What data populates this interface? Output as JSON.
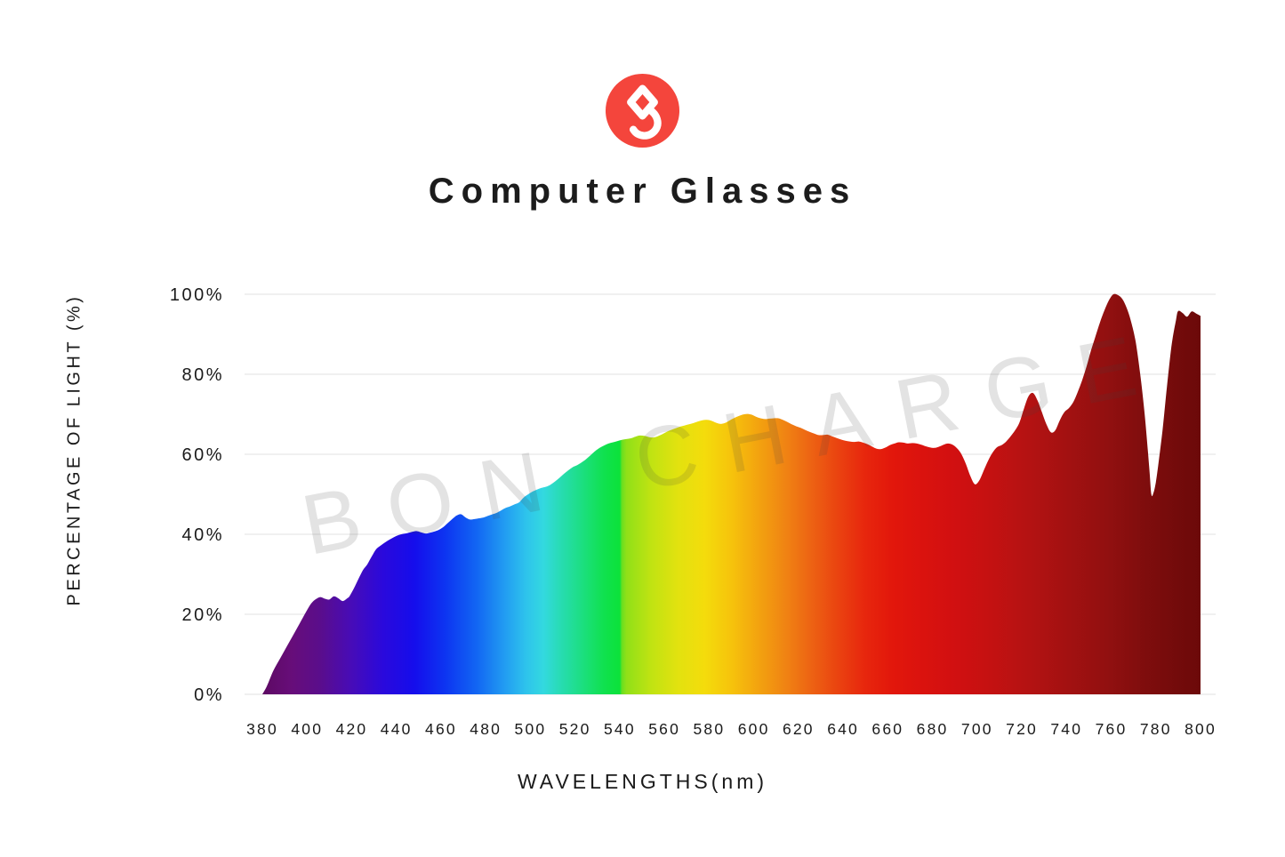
{
  "page": {
    "background": "#FFFFFF"
  },
  "logo": {
    "bg_color": "#F4453C",
    "glyph_color": "#FFFFFF"
  },
  "title": "Computer Glasses",
  "watermark": {
    "text": "BON CHARGE"
  },
  "colors": {
    "grid": "#E6E6E6",
    "text": "#1A1A1A",
    "watermark": "rgba(64,64,64,0.15)"
  },
  "chart_data": {
    "type": "area",
    "title": "Computer Glasses",
    "xlabel": "WAVELENGTHS(nm)",
    "ylabel": "PERCENTAGE OF LIGHT (%)",
    "xlim": [
      380,
      800
    ],
    "ylim": [
      0,
      100
    ],
    "grid": true,
    "legend_position": "none",
    "x_ticks": [
      380,
      400,
      420,
      440,
      460,
      480,
      500,
      520,
      540,
      560,
      580,
      600,
      620,
      640,
      660,
      680,
      700,
      720,
      740,
      760,
      780,
      800
    ],
    "y_ticks": [
      {
        "value": 100,
        "label": "100%"
      },
      {
        "value": 80,
        "label": "80%"
      },
      {
        "value": 60,
        "label": "60%"
      },
      {
        "value": 40,
        "label": "40%"
      },
      {
        "value": 20,
        "label": "20%"
      },
      {
        "value": 0,
        "label": "0%"
      }
    ],
    "series": [
      {
        "name": "light-transmission-spectrum",
        "points": [
          [
            380,
            0
          ],
          [
            382,
            2
          ],
          [
            385,
            6
          ],
          [
            388,
            9
          ],
          [
            391,
            12
          ],
          [
            394,
            15
          ],
          [
            397,
            18
          ],
          [
            400,
            21
          ],
          [
            402,
            22.8
          ],
          [
            404,
            23.8
          ],
          [
            406,
            24.3
          ],
          [
            408,
            23.9
          ],
          [
            410,
            23.7
          ],
          [
            412,
            24.5
          ],
          [
            414,
            24
          ],
          [
            416,
            23.3
          ],
          [
            418,
            24
          ],
          [
            419,
            24.5
          ],
          [
            421,
            26.5
          ],
          [
            423,
            28.8
          ],
          [
            425,
            31
          ],
          [
            427,
            32.5
          ],
          [
            429,
            34.5
          ],
          [
            431,
            36.3
          ],
          [
            433,
            37.2
          ],
          [
            435,
            38
          ],
          [
            437,
            38.7
          ],
          [
            439,
            39.3
          ],
          [
            441,
            39.8
          ],
          [
            443,
            40.1
          ],
          [
            445,
            40.3
          ],
          [
            447,
            40.6
          ],
          [
            449,
            40.8
          ],
          [
            451,
            40.5
          ],
          [
            453,
            40.2
          ],
          [
            455,
            40.4
          ],
          [
            457,
            40.7
          ],
          [
            459,
            41.1
          ],
          [
            461,
            41.8
          ],
          [
            463,
            42.8
          ],
          [
            465,
            43.8
          ],
          [
            467,
            44.7
          ],
          [
            469,
            45
          ],
          [
            471,
            44.2
          ],
          [
            473,
            43.7
          ],
          [
            475,
            43.8
          ],
          [
            477,
            44
          ],
          [
            479,
            44.2
          ],
          [
            481,
            44.6
          ],
          [
            483,
            45
          ],
          [
            485,
            45.4
          ],
          [
            487,
            46
          ],
          [
            489,
            46.6
          ],
          [
            491,
            47
          ],
          [
            493,
            47.5
          ],
          [
            495,
            48
          ],
          [
            497,
            49.2
          ],
          [
            499,
            50
          ],
          [
            501,
            50.7
          ],
          [
            503,
            51.2
          ],
          [
            505,
            51.6
          ],
          [
            507,
            51.9
          ],
          [
            509,
            52.4
          ],
          [
            511,
            53.2
          ],
          [
            513,
            54.1
          ],
          [
            515,
            55.1
          ],
          [
            517,
            56
          ],
          [
            519,
            56.8
          ],
          [
            521,
            57.3
          ],
          [
            523,
            58
          ],
          [
            525,
            58.8
          ],
          [
            527,
            59.8
          ],
          [
            529,
            60.8
          ],
          [
            531,
            61.6
          ],
          [
            533,
            62.2
          ],
          [
            535,
            62.7
          ],
          [
            537,
            63
          ],
          [
            539,
            63.3
          ],
          [
            541,
            63.6
          ],
          [
            543,
            63.8
          ],
          [
            545,
            64
          ],
          [
            547,
            64.4
          ],
          [
            549,
            64.7
          ],
          [
            551,
            64.6
          ],
          [
            553,
            64.3
          ],
          [
            555,
            64.2
          ],
          [
            557,
            64.5
          ],
          [
            559,
            65
          ],
          [
            561,
            65.6
          ],
          [
            563,
            66.1
          ],
          [
            565,
            66.5
          ],
          [
            567,
            66.9
          ],
          [
            569,
            67.2
          ],
          [
            571,
            67.5
          ],
          [
            573,
            67.8
          ],
          [
            575,
            68.2
          ],
          [
            577,
            68.5
          ],
          [
            579,
            68.6
          ],
          [
            581,
            68.4
          ],
          [
            583,
            67.9
          ],
          [
            585,
            67.6
          ],
          [
            587,
            67.8
          ],
          [
            589,
            68.4
          ],
          [
            591,
            69
          ],
          [
            593,
            69.5
          ],
          [
            595,
            69.9
          ],
          [
            597,
            70.1
          ],
          [
            599,
            69.9
          ],
          [
            601,
            69.4
          ],
          [
            603,
            69
          ],
          [
            605,
            68.8
          ],
          [
            607,
            68.9
          ],
          [
            609,
            69
          ],
          [
            611,
            69
          ],
          [
            613,
            68.6
          ],
          [
            615,
            68.1
          ],
          [
            617,
            67.5
          ],
          [
            619,
            67
          ],
          [
            621,
            66.6
          ],
          [
            623,
            66.1
          ],
          [
            625,
            65.6
          ],
          [
            627,
            65.2
          ],
          [
            629,
            64.8
          ],
          [
            631,
            64.8
          ],
          [
            633,
            64.9
          ],
          [
            635,
            64.5
          ],
          [
            637,
            64.1
          ],
          [
            639,
            63.7
          ],
          [
            641,
            63.4
          ],
          [
            643,
            63.2
          ],
          [
            645,
            63.1
          ],
          [
            647,
            63.2
          ],
          [
            649,
            62.9
          ],
          [
            651,
            62.5
          ],
          [
            653,
            61.9
          ],
          [
            655,
            61.4
          ],
          [
            657,
            61.3
          ],
          [
            659,
            61.7
          ],
          [
            661,
            62.3
          ],
          [
            663,
            62.7
          ],
          [
            665,
            63
          ],
          [
            667,
            62.9
          ],
          [
            669,
            62.7
          ],
          [
            671,
            62.8
          ],
          [
            673,
            62.7
          ],
          [
            675,
            62.4
          ],
          [
            677,
            62
          ],
          [
            679,
            61.7
          ],
          [
            681,
            61.6
          ],
          [
            683,
            61.9
          ],
          [
            685,
            62.4
          ],
          [
            687,
            62.7
          ],
          [
            689,
            62.4
          ],
          [
            691,
            61.5
          ],
          [
            693,
            60
          ],
          [
            695,
            57.5
          ],
          [
            697,
            54.5
          ],
          [
            699,
            52.5
          ],
          [
            701,
            53.5
          ],
          [
            703,
            56
          ],
          [
            705,
            58.5
          ],
          [
            707,
            60.5
          ],
          [
            709,
            61.8
          ],
          [
            711,
            62.3
          ],
          [
            713,
            63.2
          ],
          [
            715,
            64.5
          ],
          [
            717,
            66
          ],
          [
            719,
            68
          ],
          [
            721,
            71.5
          ],
          [
            723,
            74.5
          ],
          [
            725,
            75.3
          ],
          [
            727,
            73.5
          ],
          [
            729,
            70.5
          ],
          [
            731,
            67.5
          ],
          [
            733,
            65.5
          ],
          [
            735,
            66
          ],
          [
            737,
            68.5
          ],
          [
            739,
            70.5
          ],
          [
            741,
            71.5
          ],
          [
            743,
            73
          ],
          [
            745,
            75.5
          ],
          [
            747,
            78.5
          ],
          [
            749,
            82
          ],
          [
            751,
            86
          ],
          [
            753,
            89.5
          ],
          [
            755,
            93
          ],
          [
            757,
            96
          ],
          [
            759,
            98.5
          ],
          [
            761,
            100
          ],
          [
            763,
            99.8
          ],
          [
            765,
            98.8
          ],
          [
            767,
            96.5
          ],
          [
            769,
            93
          ],
          [
            771,
            88
          ],
          [
            773,
            80
          ],
          [
            775,
            70
          ],
          [
            777,
            57
          ],
          [
            778,
            50
          ],
          [
            779,
            50.5
          ],
          [
            780,
            53
          ],
          [
            781,
            57
          ],
          [
            783,
            66
          ],
          [
            785,
            77
          ],
          [
            787,
            87
          ],
          [
            789,
            93.5
          ],
          [
            790,
            95.8
          ],
          [
            792,
            95.3
          ],
          [
            794,
            94.4
          ],
          [
            796,
            95.7
          ],
          [
            798,
            95.2
          ],
          [
            800,
            94.6
          ]
        ]
      }
    ],
    "gradient_stops": [
      [
        380,
        "#5D0A63"
      ],
      [
        393,
        "#670D79"
      ],
      [
        406,
        "#5A0D8C"
      ],
      [
        420,
        "#470CB8"
      ],
      [
        434,
        "#2A09DC"
      ],
      [
        448,
        "#150DEC"
      ],
      [
        462,
        "#0D35F1"
      ],
      [
        476,
        "#1266F3"
      ],
      [
        488,
        "#219AF2"
      ],
      [
        498,
        "#2EC3EC"
      ],
      [
        506,
        "#33D9DF"
      ],
      [
        514,
        "#27DCB0"
      ],
      [
        524,
        "#1BDF7C"
      ],
      [
        533,
        "#10E14E"
      ],
      [
        540,
        "#0CE23A"
      ],
      [
        541,
        "#6ADF20"
      ],
      [
        543,
        "#90E018"
      ],
      [
        554,
        "#C0E312"
      ],
      [
        566,
        "#E2E20F"
      ],
      [
        578,
        "#F4DC0C"
      ],
      [
        590,
        "#F6C30C"
      ],
      [
        602,
        "#F3A30F"
      ],
      [
        614,
        "#F08413"
      ],
      [
        626,
        "#ED6213"
      ],
      [
        638,
        "#EA4210"
      ],
      [
        650,
        "#E7260D"
      ],
      [
        662,
        "#E2170C"
      ],
      [
        676,
        "#DA120E"
      ],
      [
        690,
        "#D11011"
      ],
      [
        705,
        "#C51111"
      ],
      [
        722,
        "#B51212"
      ],
      [
        740,
        "#A31111"
      ],
      [
        758,
        "#921010"
      ],
      [
        775,
        "#7F0D0D"
      ],
      [
        790,
        "#730B0B"
      ],
      [
        800,
        "#6C0909"
      ]
    ]
  }
}
